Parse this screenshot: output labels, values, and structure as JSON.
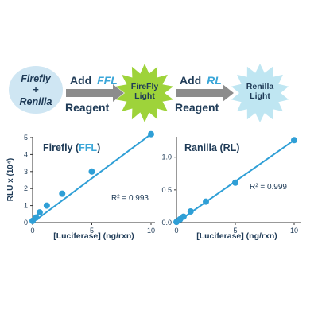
{
  "workflow": {
    "start_line1": "Firefly",
    "start_plus": "+",
    "start_line2": "Renilla",
    "step1_add": "Add",
    "step1_target": "FFL",
    "step1_reagent": "Reagent",
    "burst1_line1": "FireFly",
    "burst1_line2": "Light",
    "step2_add": "Add",
    "step2_target": "RL",
    "step2_reagent": "Reagent",
    "burst2_line1": "Renilla",
    "burst2_line2": "Light"
  },
  "colors": {
    "point": "#2f9fd6",
    "line": "#2f9fd6",
    "accent_text": "#3aa6d8",
    "start_ellipse": "#cfe6f3",
    "burst1": "#9ed33a",
    "burst2": "#bfe6f2",
    "arrow": "#8c8c8c",
    "text": "#1f3b57"
  },
  "chart_data": [
    {
      "type": "scatter",
      "title_prefix": "Firefly (",
      "title_accent": "FFL",
      "title_suffix": ")",
      "ylabel": "RLU x (10⁴)",
      "xlabel": "[Luciferase] (ng/rxn)",
      "annotation": "R² = 0.993",
      "xlim": [
        0,
        10
      ],
      "ylim": [
        0,
        5
      ],
      "xticks": [
        "0",
        "5",
        "10"
      ],
      "yticks": [
        "0",
        "1",
        "2",
        "3",
        "4",
        "5"
      ],
      "points": {
        "x": [
          0,
          0.3,
          0.6,
          1.2,
          2.5,
          5,
          10
        ],
        "y": [
          0.1,
          0.3,
          0.6,
          1.0,
          1.7,
          3.0,
          5.2
        ]
      },
      "trendline": {
        "x": [
          0,
          10
        ],
        "y": [
          0,
          5.2
        ]
      }
    },
    {
      "type": "scatter",
      "title": "Ranilla (RL)",
      "ylabel": "",
      "xlabel": "[Luciferase] (ng/rxn)",
      "annotation": "R² = 0.999",
      "xlim": [
        0,
        10
      ],
      "ylim": [
        0,
        1.3
      ],
      "xticks": [
        "0",
        "5",
        "10"
      ],
      "yticks": [
        "0.0",
        "0.5",
        "1.0"
      ],
      "points": {
        "x": [
          0,
          0.3,
          0.6,
          1.2,
          2.5,
          5,
          10
        ],
        "y": [
          0.01,
          0.05,
          0.09,
          0.17,
          0.32,
          0.61,
          1.26
        ]
      },
      "trendline": {
        "x": [
          0,
          10
        ],
        "y": [
          0,
          1.26
        ]
      }
    }
  ]
}
